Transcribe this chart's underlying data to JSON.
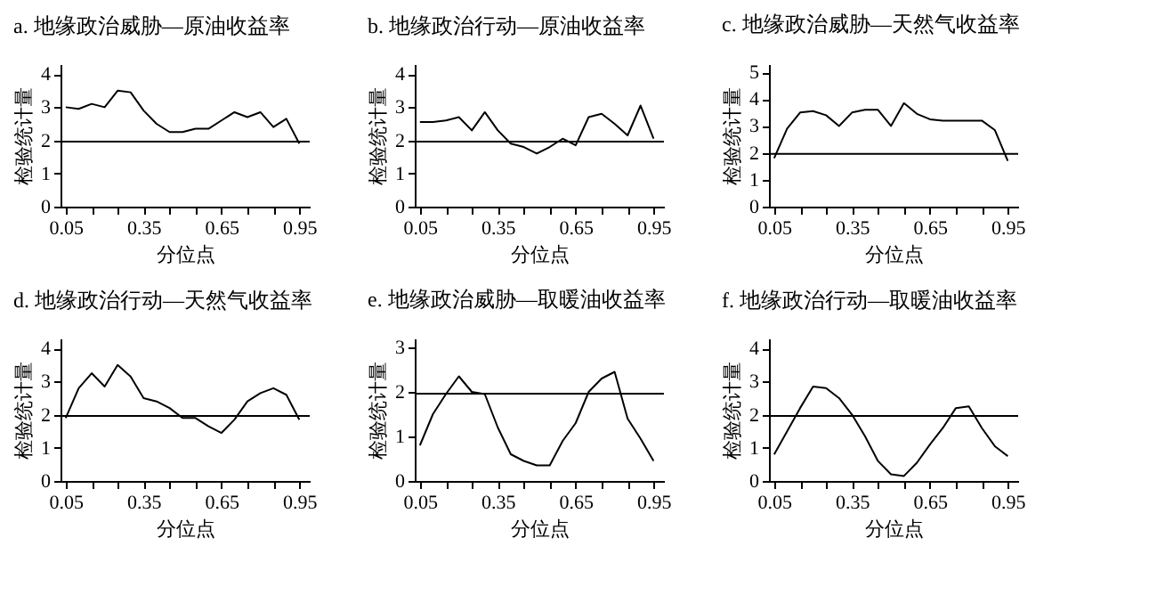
{
  "chart_data": [
    {
      "type": "line",
      "title": "a. 地缘政治威胁—原油收益率",
      "xlabel": "分位点",
      "ylabel": "检验统计量",
      "x": [
        0.05,
        0.1,
        0.15,
        0.2,
        0.25,
        0.3,
        0.35,
        0.4,
        0.45,
        0.5,
        0.55,
        0.6,
        0.65,
        0.7,
        0.75,
        0.8,
        0.85,
        0.9,
        0.95
      ],
      "series": [
        {
          "color": "#000000",
          "values": [
            3.0,
            2.95,
            3.1,
            3.0,
            3.5,
            3.45,
            2.9,
            2.5,
            2.25,
            2.25,
            2.35,
            2.35,
            2.6,
            2.85,
            2.7,
            2.85,
            2.4,
            2.65,
            1.9
          ]
        }
      ],
      "xlim": [
        0.03,
        0.99
      ],
      "ylim": [
        0,
        4.3
      ],
      "yticks": [
        0,
        1,
        2,
        3,
        4
      ],
      "xticks": [
        0.05,
        {
          "value": 0.15,
          "label": null
        },
        {
          "value": 0.25,
          "label": null
        },
        0.35,
        {
          "value": 0.45,
          "label": null
        },
        {
          "value": 0.55,
          "label": null
        },
        0.65,
        {
          "value": 0.75,
          "label": null
        },
        {
          "value": 0.85,
          "label": null
        },
        0.95
      ],
      "ref_lines": [
        {
          "axis": "y",
          "value": 1.96,
          "color": "#000000"
        }
      ]
    },
    {
      "type": "line",
      "title": "b. 地缘政治行动—原油收益率",
      "xlabel": "分位点",
      "ylabel": "检验统计量",
      "x": [
        0.05,
        0.1,
        0.15,
        0.2,
        0.25,
        0.3,
        0.35,
        0.4,
        0.45,
        0.5,
        0.55,
        0.6,
        0.65,
        0.7,
        0.75,
        0.8,
        0.85,
        0.9,
        0.95
      ],
      "series": [
        {
          "color": "#000000",
          "values": [
            2.55,
            2.55,
            2.6,
            2.7,
            2.3,
            2.85,
            2.3,
            1.9,
            1.8,
            1.6,
            1.8,
            2.05,
            1.85,
            2.7,
            2.8,
            2.5,
            2.15,
            3.05,
            2.05
          ]
        }
      ],
      "xlim": [
        0.03,
        0.99
      ],
      "ylim": [
        0,
        4.3
      ],
      "yticks": [
        0,
        1,
        2,
        3,
        4
      ],
      "xticks": [
        0.05,
        {
          "value": 0.15,
          "label": null
        },
        {
          "value": 0.25,
          "label": null
        },
        0.35,
        {
          "value": 0.45,
          "label": null
        },
        {
          "value": 0.55,
          "label": null
        },
        0.65,
        {
          "value": 0.75,
          "label": null
        },
        {
          "value": 0.85,
          "label": null
        },
        0.95
      ],
      "ref_lines": [
        {
          "axis": "y",
          "value": 1.96,
          "color": "#000000"
        }
      ]
    },
    {
      "type": "line",
      "title": "c. 地缘政治威胁—天然气收益率",
      "xlabel": "分位点",
      "ylabel": "检验统计量",
      "x": [
        0.05,
        0.1,
        0.15,
        0.2,
        0.25,
        0.3,
        0.35,
        0.4,
        0.45,
        0.5,
        0.55,
        0.6,
        0.65,
        0.7,
        0.75,
        0.8,
        0.85,
        0.9,
        0.95
      ],
      "series": [
        {
          "color": "#000000",
          "values": [
            1.8,
            2.9,
            3.5,
            3.55,
            3.4,
            3.0,
            3.5,
            3.6,
            3.6,
            3.0,
            3.85,
            3.45,
            3.25,
            3.2,
            3.2,
            3.2,
            3.2,
            2.85,
            1.7
          ]
        }
      ],
      "xlim": [
        0.03,
        0.99
      ],
      "ylim": [
        0,
        5.3
      ],
      "yticks": [
        0,
        1,
        2,
        3,
        4,
        5
      ],
      "xticks": [
        0.05,
        {
          "value": 0.15,
          "label": null
        },
        {
          "value": 0.25,
          "label": null
        },
        0.35,
        {
          "value": 0.45,
          "label": null
        },
        {
          "value": 0.55,
          "label": null
        },
        0.65,
        {
          "value": 0.75,
          "label": null
        },
        {
          "value": 0.85,
          "label": null
        },
        0.95
      ],
      "ref_lines": [
        {
          "axis": "y",
          "value": 1.96,
          "color": "#000000"
        }
      ]
    },
    {
      "type": "line",
      "title": "d. 地缘政治行动—天然气收益率",
      "xlabel": "分位点",
      "ylabel": "检验统计量",
      "x": [
        0.05,
        0.1,
        0.15,
        0.2,
        0.25,
        0.3,
        0.35,
        0.4,
        0.45,
        0.5,
        0.55,
        0.6,
        0.65,
        0.7,
        0.75,
        0.8,
        0.85,
        0.9,
        0.95
      ],
      "series": [
        {
          "color": "#000000",
          "values": [
            1.9,
            2.8,
            3.25,
            2.85,
            3.5,
            3.15,
            2.5,
            2.4,
            2.2,
            1.9,
            1.9,
            1.65,
            1.45,
            1.85,
            2.4,
            2.65,
            2.8,
            2.6,
            1.85
          ]
        }
      ],
      "xlim": [
        0.03,
        0.99
      ],
      "ylim": [
        0,
        4.3
      ],
      "yticks": [
        0,
        1,
        2,
        3,
        4
      ],
      "xticks": [
        0.05,
        {
          "value": 0.15,
          "label": null
        },
        {
          "value": 0.25,
          "label": null
        },
        0.35,
        {
          "value": 0.45,
          "label": null
        },
        {
          "value": 0.55,
          "label": null
        },
        0.65,
        {
          "value": 0.75,
          "label": null
        },
        {
          "value": 0.85,
          "label": null
        },
        0.95
      ],
      "ref_lines": [
        {
          "axis": "y",
          "value": 1.96,
          "color": "#000000"
        }
      ]
    },
    {
      "type": "line",
      "title": "e. 地缘政治威胁—取暖油收益率",
      "xlabel": "分位点",
      "ylabel": "检验统计量",
      "x": [
        0.05,
        0.1,
        0.15,
        0.2,
        0.25,
        0.3,
        0.35,
        0.4,
        0.45,
        0.5,
        0.55,
        0.6,
        0.65,
        0.7,
        0.75,
        0.8,
        0.85,
        0.9,
        0.95
      ],
      "series": [
        {
          "color": "#000000",
          "values": [
            0.8,
            1.5,
            1.95,
            2.35,
            2.0,
            1.95,
            1.2,
            0.6,
            0.45,
            0.35,
            0.35,
            0.9,
            1.3,
            2.0,
            2.3,
            2.45,
            1.4,
            0.95,
            0.45
          ]
        }
      ],
      "xlim": [
        0.03,
        0.99
      ],
      "ylim": [
        0,
        3.2
      ],
      "yticks": [
        0,
        1,
        2,
        3
      ],
      "xticks": [
        0.05,
        {
          "value": 0.15,
          "label": null
        },
        {
          "value": 0.25,
          "label": null
        },
        0.35,
        {
          "value": 0.45,
          "label": null
        },
        {
          "value": 0.55,
          "label": null
        },
        0.65,
        {
          "value": 0.75,
          "label": null
        },
        {
          "value": 0.85,
          "label": null
        },
        0.95
      ],
      "ref_lines": [
        {
          "axis": "y",
          "value": 1.96,
          "color": "#000000"
        }
      ]
    },
    {
      "type": "line",
      "title": "f. 地缘政治行动—取暖油收益率",
      "xlabel": "分位点",
      "ylabel": "检验统计量",
      "x": [
        0.05,
        0.1,
        0.15,
        0.2,
        0.25,
        0.3,
        0.35,
        0.4,
        0.45,
        0.5,
        0.55,
        0.6,
        0.65,
        0.7,
        0.75,
        0.8,
        0.85,
        0.9,
        0.95
      ],
      "series": [
        {
          "color": "#000000",
          "values": [
            0.8,
            1.5,
            2.2,
            2.85,
            2.8,
            2.5,
            2.0,
            1.35,
            0.6,
            0.2,
            0.15,
            0.55,
            1.1,
            1.6,
            2.2,
            2.25,
            1.6,
            1.05,
            0.75
          ]
        }
      ],
      "xlim": [
        0.03,
        0.99
      ],
      "ylim": [
        0,
        4.3
      ],
      "yticks": [
        0,
        1,
        2,
        3,
        4
      ],
      "xticks": [
        0.05,
        {
          "value": 0.15,
          "label": null
        },
        {
          "value": 0.25,
          "label": null
        },
        0.35,
        {
          "value": 0.45,
          "label": null
        },
        {
          "value": 0.55,
          "label": null
        },
        0.65,
        {
          "value": 0.75,
          "label": null
        },
        {
          "value": 0.85,
          "label": null
        },
        0.95
      ],
      "ref_lines": [
        {
          "axis": "y",
          "value": 1.96,
          "color": "#000000"
        }
      ]
    }
  ]
}
